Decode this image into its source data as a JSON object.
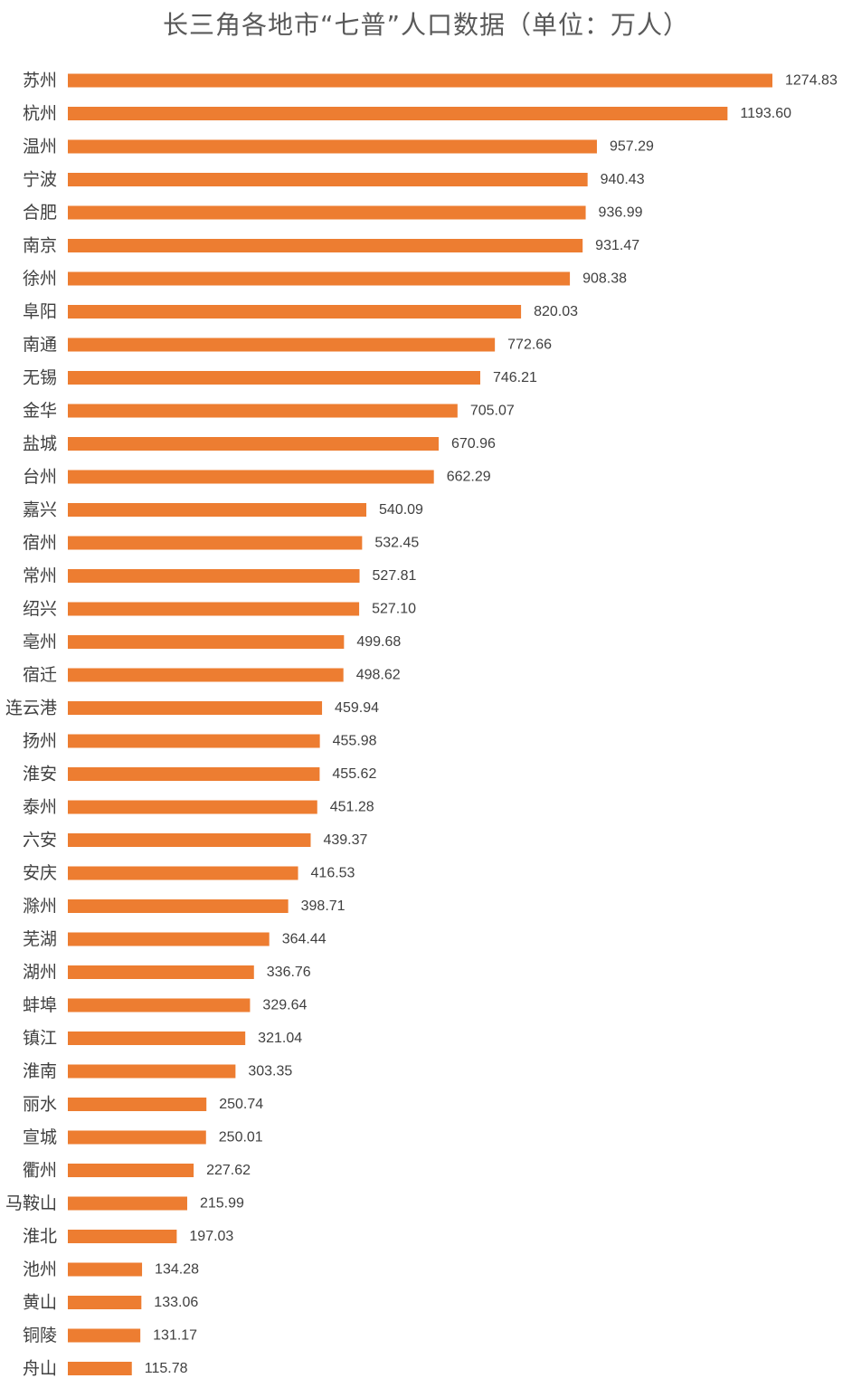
{
  "chart_data": {
    "type": "bar",
    "orientation": "horizontal",
    "title": "长三角各地市“七普”人口数据（单位：万人）",
    "xlabel": "",
    "ylabel": "",
    "legend": "none",
    "grid": false,
    "bar_color": "#ED7D31",
    "categories": [
      "苏州",
      "杭州",
      "温州",
      "宁波",
      "合肥",
      "南京",
      "徐州",
      "阜阳",
      "南通",
      "无锡",
      "金华",
      "盐城",
      "台州",
      "嘉兴",
      "宿州",
      "常州",
      "绍兴",
      "亳州",
      "宿迁",
      "连云港",
      "扬州",
      "淮安",
      "泰州",
      "六安",
      "安庆",
      "滁州",
      "芜湖",
      "湖州",
      "蚌埠",
      "镇江",
      "淮南",
      "丽水",
      "宣城",
      "衢州",
      "马鞍山",
      "淮北",
      "池州",
      "黄山",
      "铜陵",
      "舟山"
    ],
    "values": [
      1274.83,
      1193.6,
      957.29,
      940.43,
      936.99,
      931.47,
      908.38,
      820.03,
      772.66,
      746.21,
      705.07,
      670.96,
      662.29,
      540.09,
      532.45,
      527.81,
      527.1,
      499.68,
      498.62,
      459.94,
      455.98,
      455.62,
      451.28,
      439.37,
      416.53,
      398.71,
      364.44,
      336.76,
      329.64,
      321.04,
      303.35,
      250.74,
      250.01,
      227.62,
      215.99,
      197.03,
      134.28,
      133.06,
      131.17,
      115.78
    ],
    "value_labels": [
      "1274.83",
      "1193.60",
      "957.29",
      "940.43",
      "936.99",
      "931.47",
      "908.38",
      "820.03",
      "772.66",
      "746.21",
      "705.07",
      "670.96",
      "662.29",
      "540.09",
      "532.45",
      "527.81",
      "527.10",
      "499.68",
      "498.62",
      "459.94",
      "455.98",
      "455.62",
      "451.28",
      "439.37",
      "416.53",
      "398.71",
      "364.44",
      "336.76",
      "329.64",
      "321.04",
      "303.35",
      "250.74",
      "250.01",
      "227.62",
      "215.99",
      "197.03",
      "134.28",
      "133.06",
      "131.17",
      "115.78"
    ],
    "xlim": [
      0,
      1274.83
    ]
  }
}
